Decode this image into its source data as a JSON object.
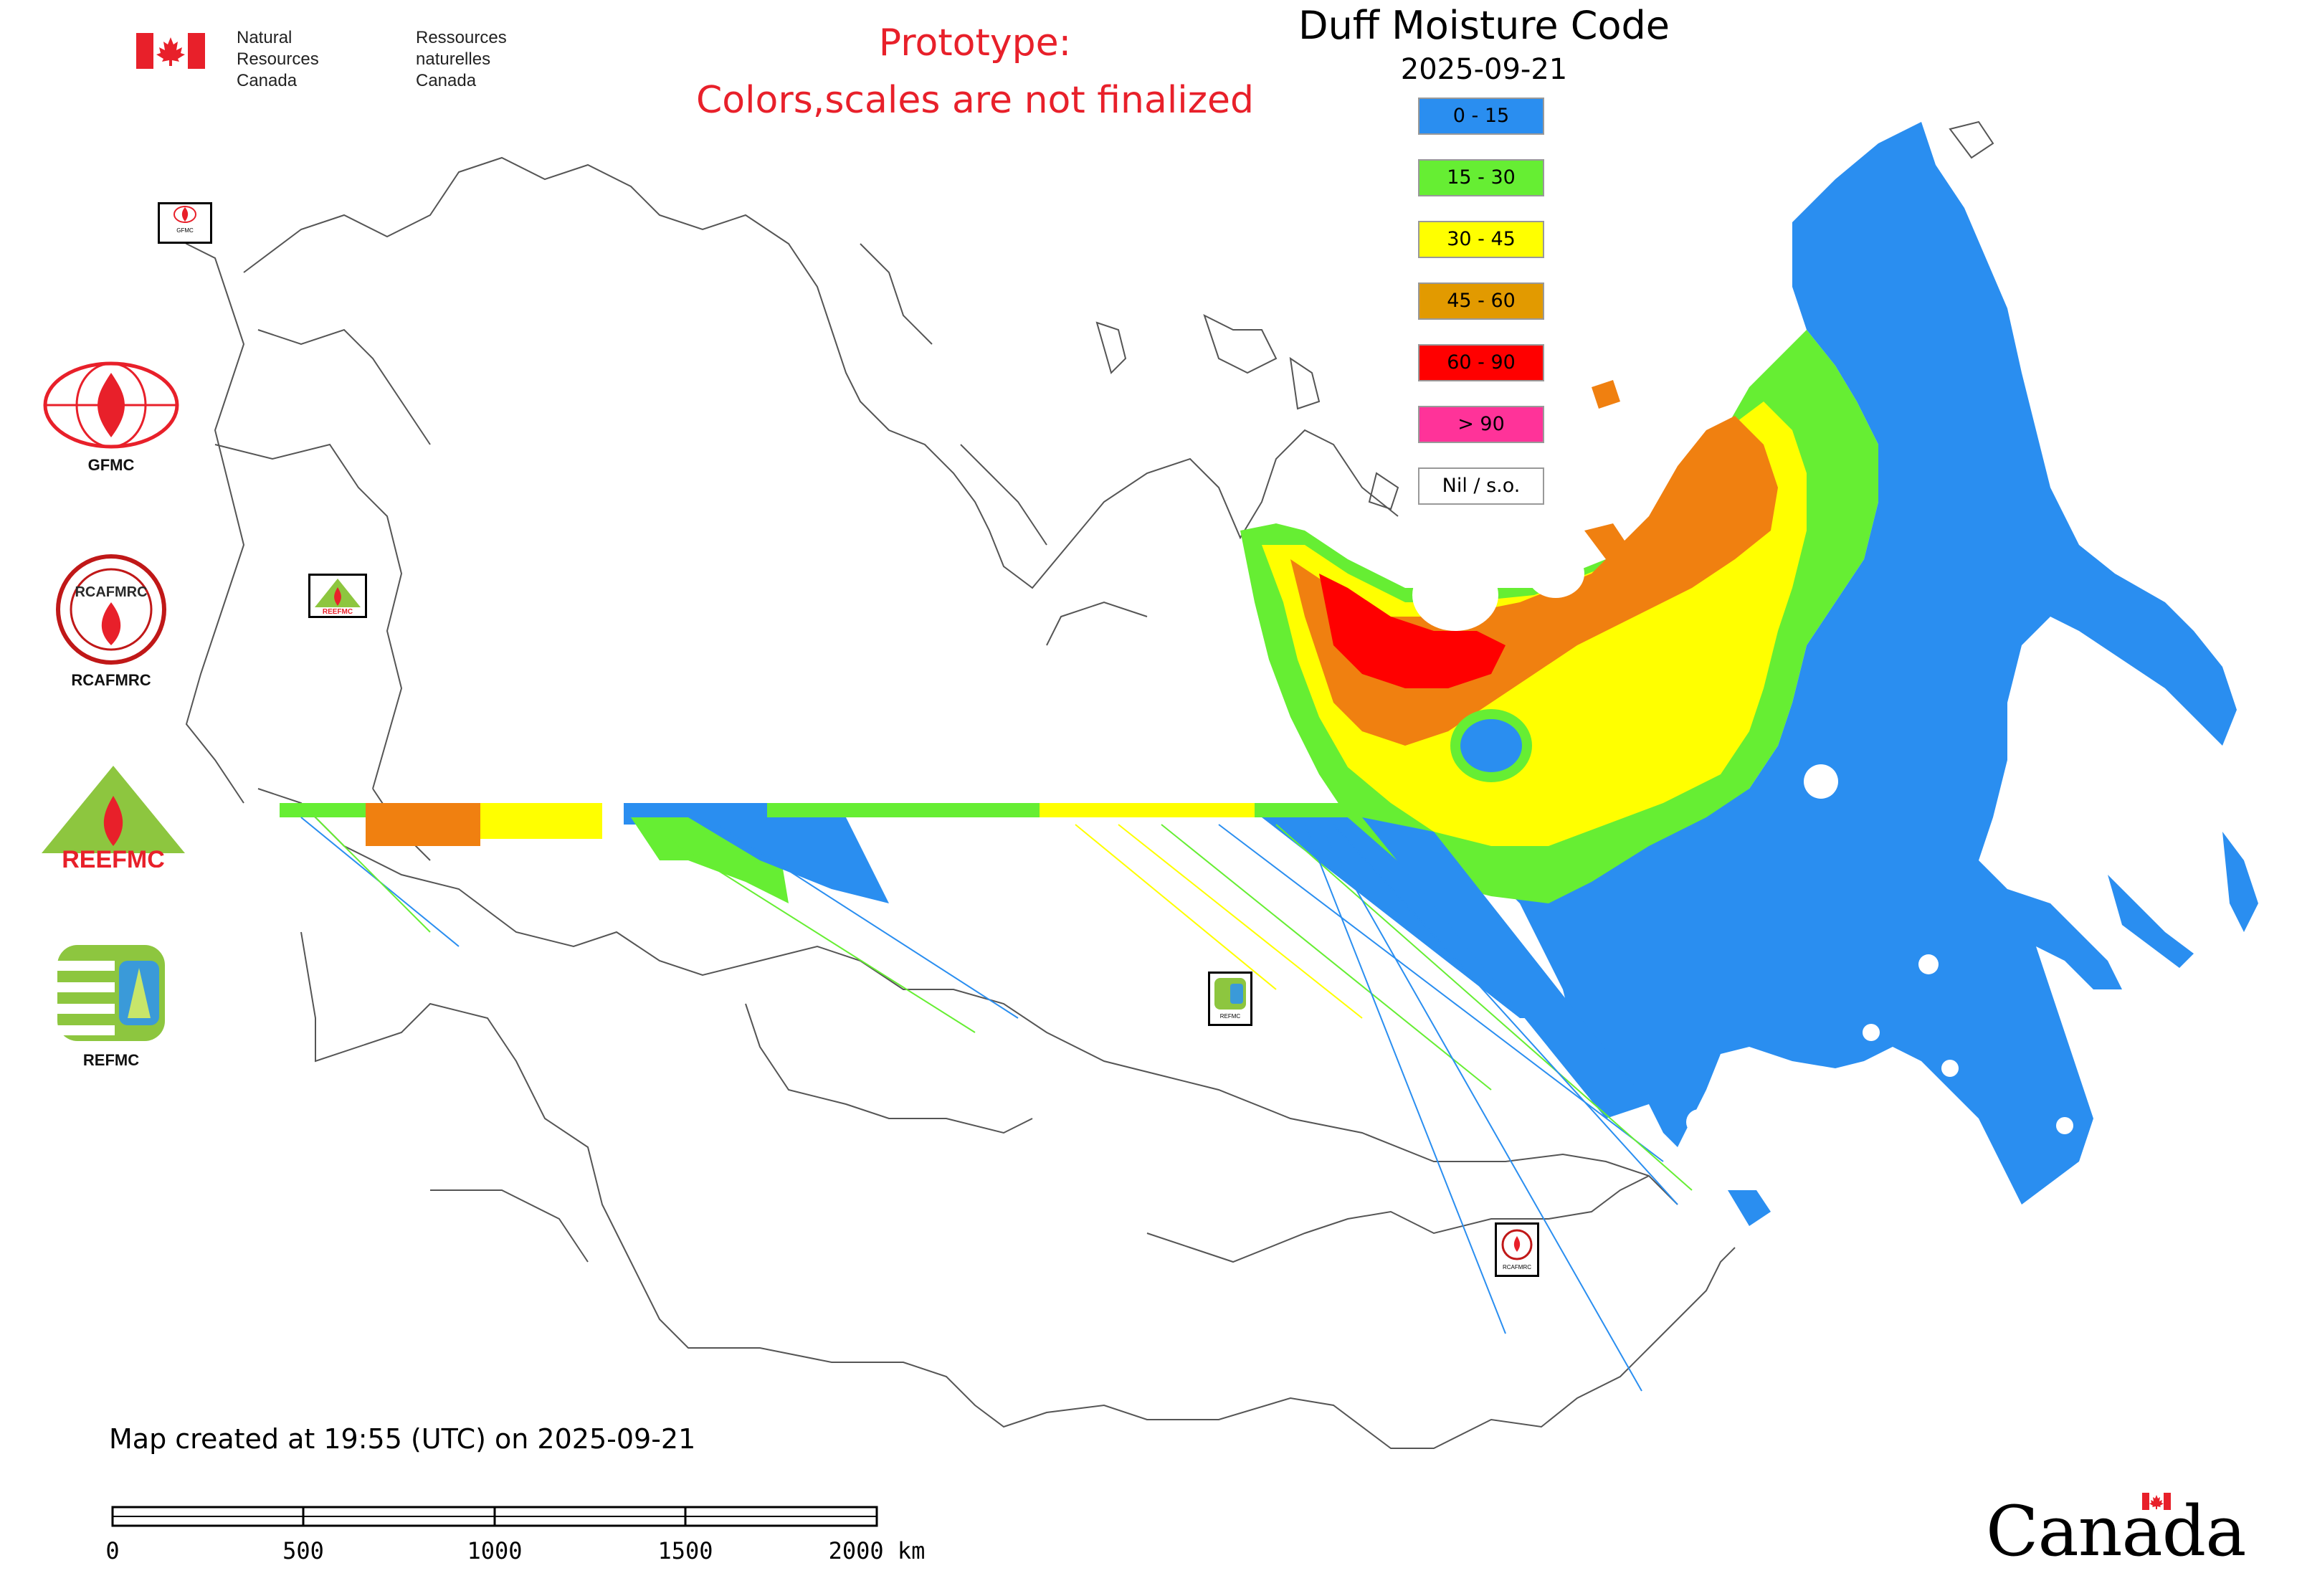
{
  "header": {
    "agency_en_1": "Natural Resources",
    "agency_en_2": "Canada",
    "agency_fr_1": "Ressources naturelles",
    "agency_fr_2": "Canada",
    "prototype_line1": "Prototype:",
    "prototype_line2": "Colors,scales are not finalized",
    "title": "Duff Moisture Code",
    "date": "2025-09-21"
  },
  "legend": {
    "items": [
      {
        "label": "0 - 15",
        "color": "#2a8ef0"
      },
      {
        "label": "15 - 30",
        "color": "#66ee33"
      },
      {
        "label": "30 - 45",
        "color": "#ffff00"
      },
      {
        "label": "45 - 60",
        "color": "#e29a00"
      },
      {
        "label": "60 - 90",
        "color": "#ff0000"
      },
      {
        "label": "> 90",
        "color": "#ff3399"
      },
      {
        "label": "Nil / s.o.",
        "color": "#ffffff"
      }
    ]
  },
  "orgs": {
    "gfmc": "GFMC",
    "rcafmrc": "RCAFMRC",
    "reefmc": "REEFMC",
    "refmc": "REFMC",
    "map_gfmc": "GFMC",
    "map_reefmc": "REEFMC",
    "map_refmc": "REFMC",
    "map_rcafmrc": "RCAFMRC"
  },
  "footer": {
    "created": "Map created at 19:55 (UTC) on 2025-09-21",
    "scale_labels": [
      "0",
      "500",
      "1000",
      "1500",
      "2000 km"
    ],
    "wordmark": "Canada"
  },
  "colors": {
    "accent_red": "#e8202a",
    "border_line": "#555555"
  }
}
